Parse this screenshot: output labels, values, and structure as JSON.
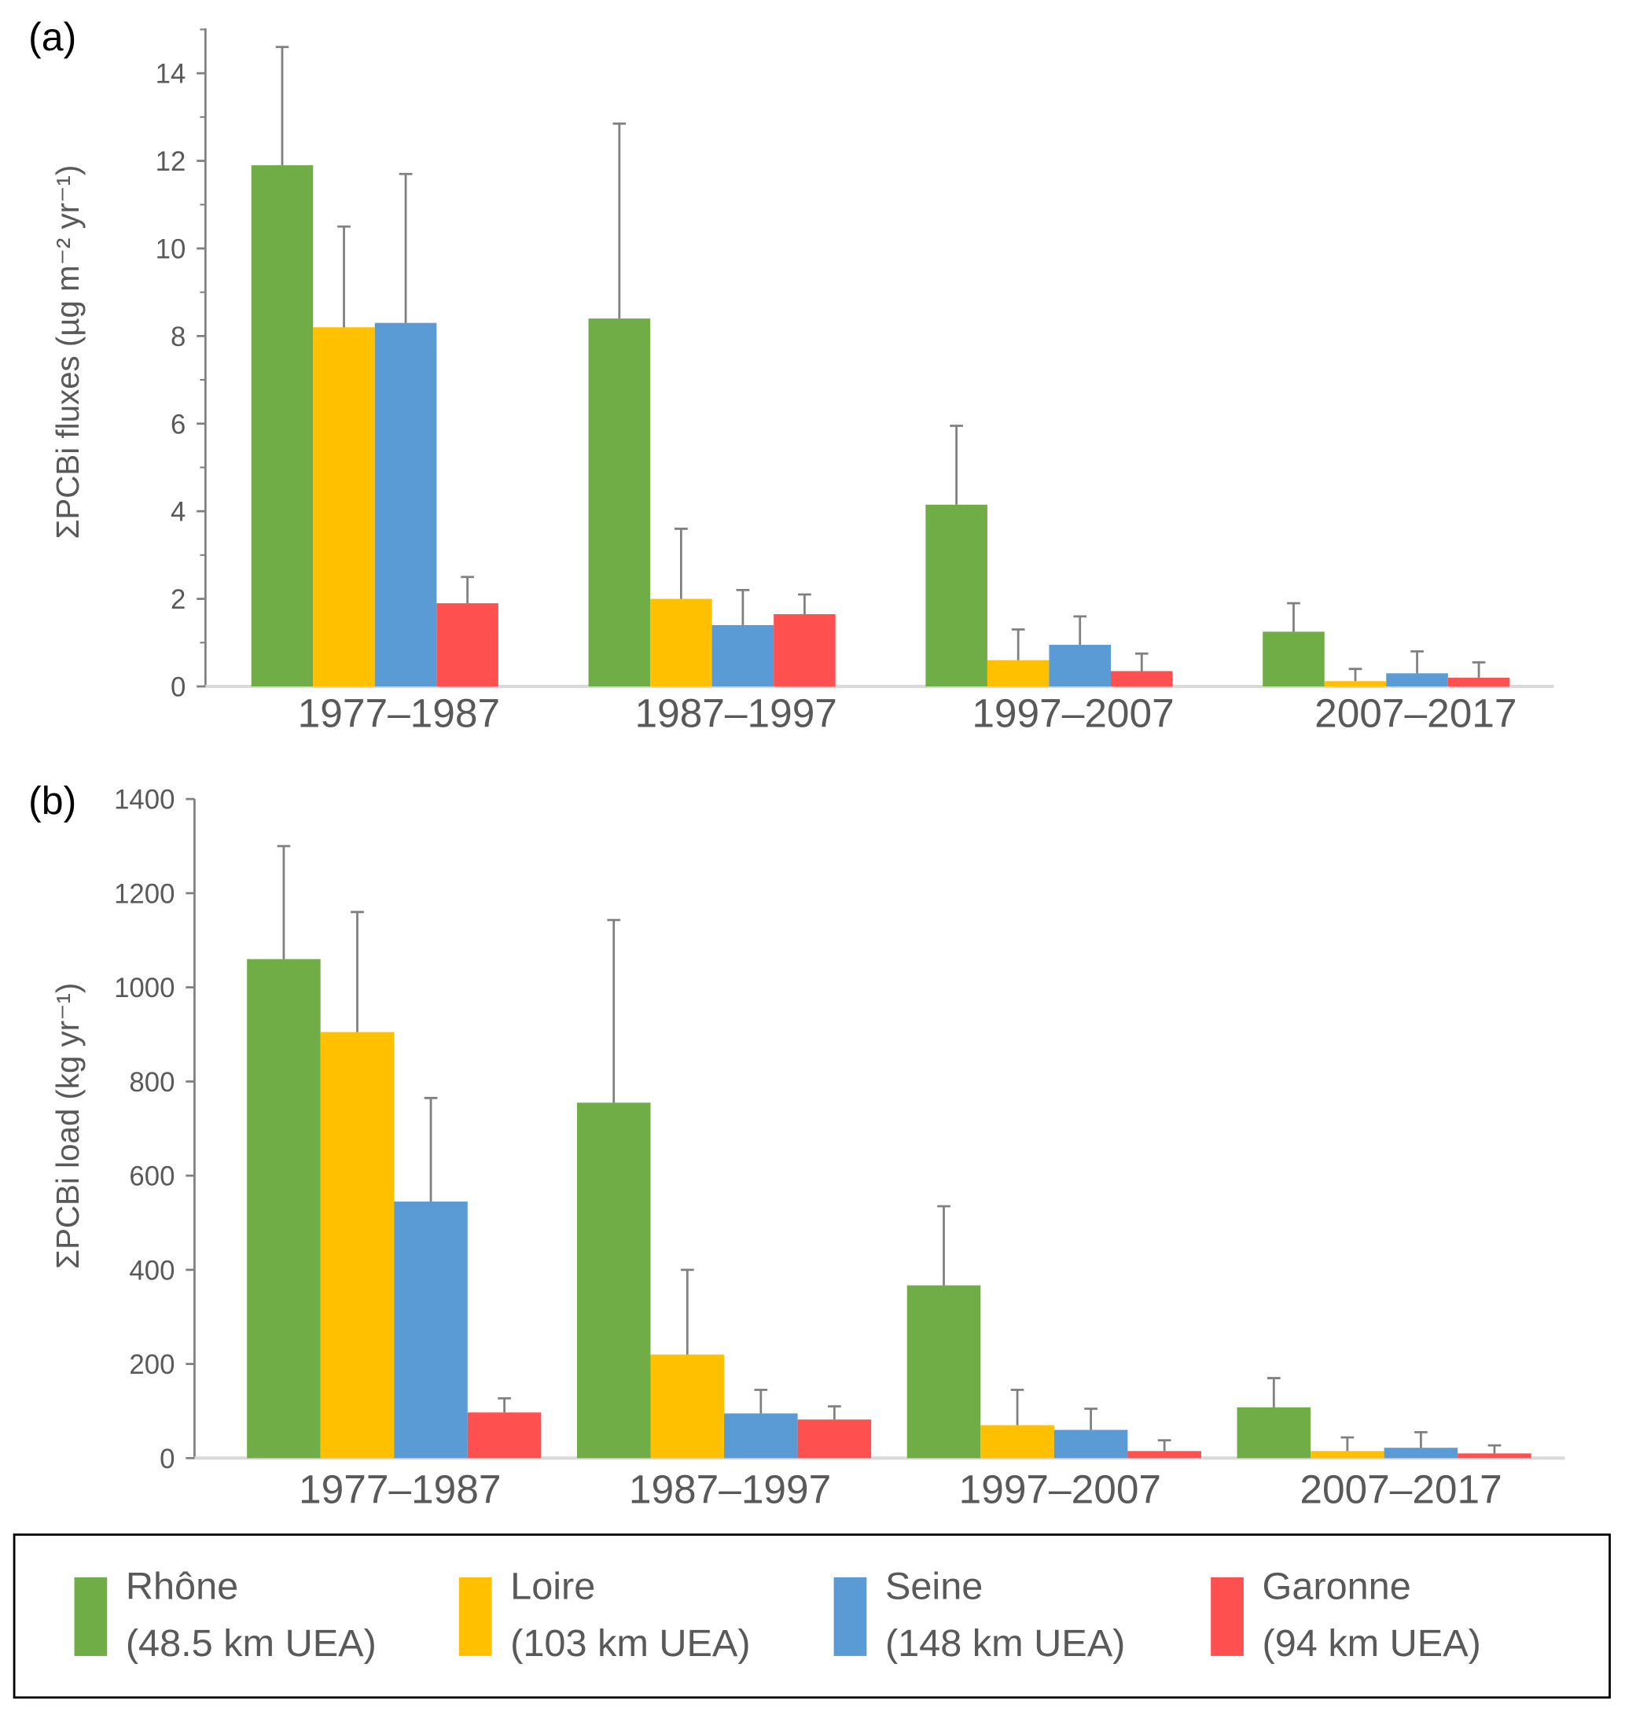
{
  "chart_data": [
    {
      "type": "bar",
      "panel_label": "(a)",
      "ylabel": "ΣPCBi fluxes (µg m⁻² yr⁻¹)",
      "ylim": [
        0,
        15
      ],
      "yticks": [
        0,
        2,
        4,
        6,
        8,
        10,
        12,
        14
      ],
      "categories": [
        "1977–1987",
        "1987–1997",
        "1997–2007",
        "2007–2017"
      ],
      "series": [
        {
          "name": "Rhône",
          "values": [
            11.9,
            8.4,
            4.15,
            1.25
          ],
          "error_upper": [
            14.6,
            12.85,
            5.95,
            1.9
          ]
        },
        {
          "name": "Loire",
          "values": [
            8.2,
            2.0,
            0.6,
            0.12
          ],
          "error_upper": [
            10.5,
            3.6,
            1.3,
            0.4
          ]
        },
        {
          "name": "Seine",
          "values": [
            8.3,
            1.4,
            0.95,
            0.3
          ],
          "error_upper": [
            11.7,
            2.2,
            1.6,
            0.8
          ]
        },
        {
          "name": "Garonne",
          "values": [
            1.9,
            1.65,
            0.35,
            0.2
          ],
          "error_upper": [
            2.5,
            2.1,
            0.75,
            0.55
          ]
        }
      ]
    },
    {
      "type": "bar",
      "panel_label": "(b)",
      "ylabel": "ΣPCBi load (kg yr⁻¹)",
      "ylim": [
        0,
        1400
      ],
      "yticks": [
        0,
        200,
        400,
        600,
        800,
        1000,
        1200,
        1400
      ],
      "categories": [
        "1977–1987",
        "1987–1997",
        "1997–2007",
        "2007–2017"
      ],
      "series": [
        {
          "name": "Rhône",
          "values": [
            1060,
            755,
            367,
            108
          ],
          "error_upper": [
            1300,
            1143,
            535,
            170
          ]
        },
        {
          "name": "Loire",
          "values": [
            905,
            220,
            70,
            15
          ],
          "error_upper": [
            1160,
            400,
            145,
            44
          ]
        },
        {
          "name": "Seine",
          "values": [
            545,
            95,
            60,
            22
          ],
          "error_upper": [
            765,
            145,
            105,
            55
          ]
        },
        {
          "name": "Garonne",
          "values": [
            97,
            82,
            15,
            10
          ],
          "error_upper": [
            127,
            110,
            38,
            27
          ]
        }
      ]
    }
  ],
  "legend": [
    {
      "name": "Rhône",
      "detail": "(48.5 km UEA)",
      "color": "#70ad47"
    },
    {
      "name": "Loire",
      "detail": "(103 km UEA)",
      "color": "#ffc000"
    },
    {
      "name": "Seine",
      "detail": "(148 km UEA)",
      "color": "#5b9bd5"
    },
    {
      "name": "Garonne",
      "detail": "(94 km UEA)",
      "color": "#ff5050"
    }
  ]
}
